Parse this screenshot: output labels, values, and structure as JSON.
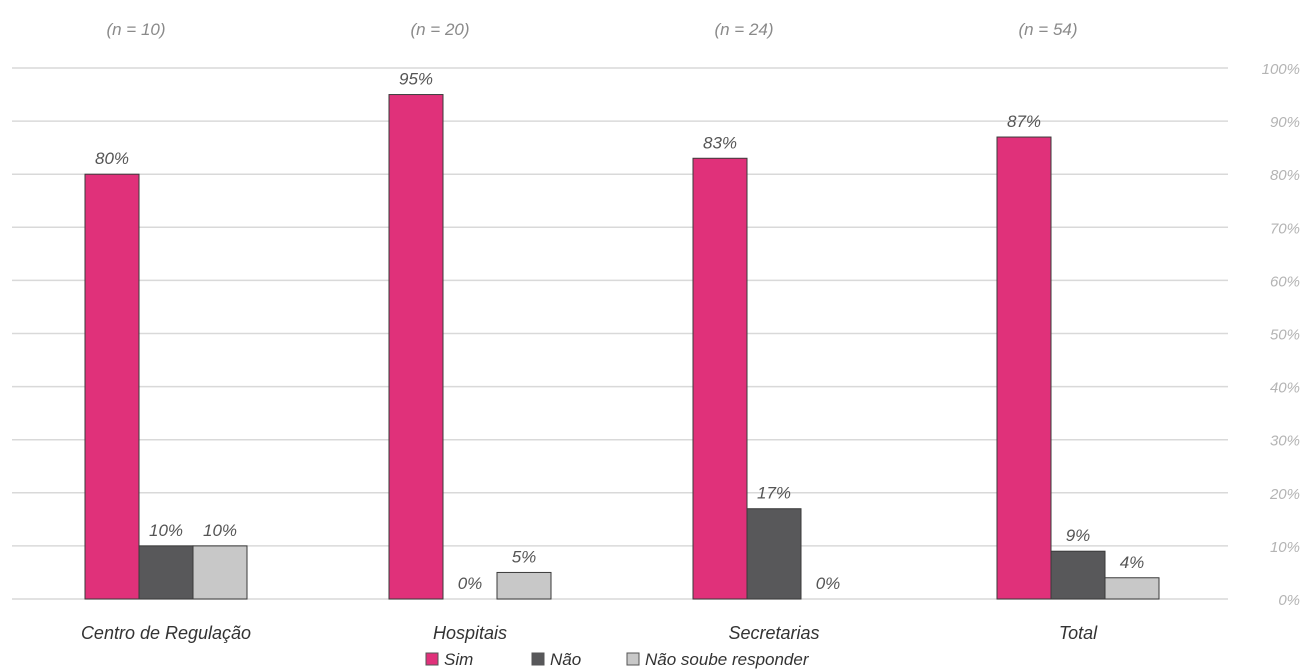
{
  "chart_data": {
    "type": "bar",
    "categories": [
      "Centro de Regulação",
      "Hospitais",
      "Secretarias",
      "Total"
    ],
    "group_notes": [
      "(n = 10)",
      "(n = 20)",
      "(n = 24)",
      "(n = 54)"
    ],
    "series": [
      {
        "name": "Sim",
        "color": "#e0317a",
        "values": [
          80,
          95,
          83,
          87
        ],
        "labels": [
          "80%",
          "95%",
          "83%",
          "87%"
        ]
      },
      {
        "name": "Não",
        "color": "#58585a",
        "values": [
          10,
          0,
          17,
          9
        ],
        "labels": [
          "10%",
          "0%",
          "17%",
          "9%"
        ]
      },
      {
        "name": "Não soube responder",
        "color": "#c8c8c8",
        "values": [
          10,
          5,
          0,
          4
        ],
        "labels": [
          "10%",
          "5%",
          "0%",
          "4%"
        ]
      }
    ],
    "ylim": [
      0,
      100
    ],
    "y_ticks": [
      0,
      10,
      20,
      30,
      40,
      50,
      60,
      70,
      80,
      90,
      100
    ],
    "y_tick_labels": [
      "0%",
      "10%",
      "20%",
      "30%",
      "40%",
      "50%",
      "60%",
      "70%",
      "80%",
      "90%",
      "100%"
    ],
    "y_axis_side": "right",
    "grid": true,
    "legend_position": "bottom-center"
  }
}
